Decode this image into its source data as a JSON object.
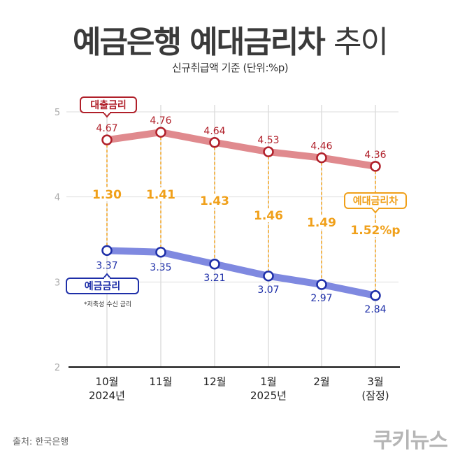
{
  "header": {
    "title_bold": "예금은행 예대금리차",
    "title_light": "추이",
    "subtitle": "신규취급액 기준 (단위:%p)"
  },
  "chart_data": {
    "type": "line",
    "categories": [
      [
        "10월",
        "2024년"
      ],
      [
        "11월",
        ""
      ],
      [
        "12월",
        ""
      ],
      [
        "1월",
        "2025년"
      ],
      [
        "2월",
        ""
      ],
      [
        "3월",
        "(잠정)"
      ]
    ],
    "yticks": [
      2,
      3,
      4,
      5
    ],
    "ylim": [
      2,
      5
    ],
    "grid": "vertical",
    "series": [
      {
        "name": "대출금리",
        "values": [
          4.67,
          4.76,
          4.64,
          4.53,
          4.46,
          4.36
        ],
        "labels": [
          "4.67",
          "4.76",
          "4.64",
          "4.53",
          "4.46",
          "4.36"
        ],
        "color": "#e08a8e",
        "marker": "#b0202a"
      },
      {
        "name": "예금금리",
        "values": [
          3.37,
          3.35,
          3.21,
          3.07,
          2.97,
          2.84
        ],
        "labels": [
          "3.37",
          "3.35",
          "3.21",
          "3.07",
          "2.97",
          "2.84"
        ],
        "color": "#7f89e0",
        "marker": "#1e2fa8"
      }
    ],
    "spread": {
      "name": "예대금리차",
      "labels": [
        "1.30",
        "1.41",
        "1.43",
        "1.46",
        "1.49",
        "1.52%p"
      ],
      "color": "#f0a01a"
    },
    "deposit_note": "*저축성 수신 금리"
  },
  "footer": {
    "source": "출처: 한국은행",
    "logo": "쿠키뉴스"
  }
}
